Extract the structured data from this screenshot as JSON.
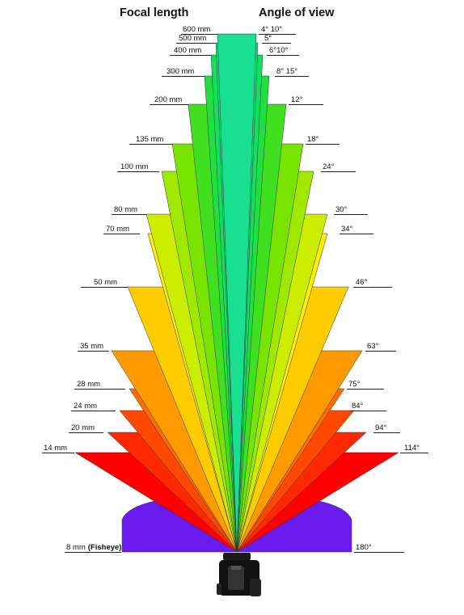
{
  "headers": {
    "left": "Focal length",
    "right": "Angle of view"
  },
  "lenses": [
    {
      "focal": "8 mm",
      "focal_note": "(Fisheye)",
      "angle": "180°",
      "color": "#6a1cf0"
    },
    {
      "focal": "14 mm",
      "angle": "114°",
      "color": "#ff0000"
    },
    {
      "focal": "20 mm",
      "angle": "94°",
      "color": "#ff2800"
    },
    {
      "focal": "24 mm",
      "angle": "84°",
      "color": "#ff4800"
    },
    {
      "focal": "28 mm",
      "angle": "75°",
      "color": "#ff6c00"
    },
    {
      "focal": "35 mm",
      "angle": "63°",
      "color": "#ff9a00"
    },
    {
      "focal": "50 mm",
      "angle": "46°",
      "color": "#ffcc00"
    },
    {
      "focal": "70 mm",
      "angle": "34°",
      "color": "#ffee00"
    },
    {
      "focal": "80 mm",
      "angle": "30°",
      "color": "#ccec00"
    },
    {
      "focal": "100 mm",
      "angle": "24°",
      "color": "#a0e800"
    },
    {
      "focal": "135 mm",
      "angle": "18°",
      "color": "#78e400"
    },
    {
      "focal": "200 mm",
      "angle": "12°",
      "color": "#40e020"
    },
    {
      "focal": "300 mm",
      "angle": "8° 15°",
      "color": "#20e040"
    },
    {
      "focal": "400 mm",
      "angle": "6°10°",
      "color": "#10e060"
    },
    {
      "focal": "500 mm",
      "angle": "5°",
      "color": "#10e078"
    },
    {
      "focal": "600 mm",
      "angle": "4° 10°",
      "color": "#18e090"
    }
  ]
}
